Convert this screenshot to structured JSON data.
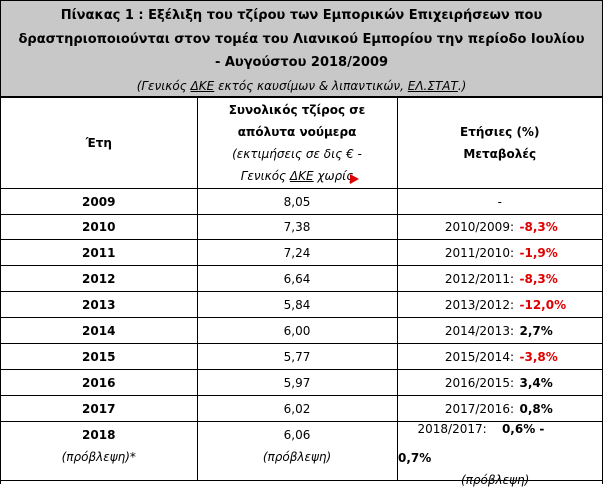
{
  "title": {
    "line1": "Πίνακας 1 : Εξέλιξη του τζίρου των Εμπορικών Επιχειρήσεων που",
    "line2": "δραστηριοποιούνται στον τομέα του Λιανικού Εμπορίου την περίοδο Ιουλίου",
    "line3": "- Αυγούστου 2018/2009",
    "subtitle_pre": "(Γενικός ",
    "subtitle_u1": "ΔΚΕ",
    "subtitle_mid": " εκτός καυσίμων & λιπαντικών, ",
    "subtitle_u2": "ΕΛ.ΣΤΑΤ",
    "subtitle_post": ".)"
  },
  "header": {
    "years": "Έτη",
    "turnover_line1": "Συνολικός τζίρος σε",
    "turnover_line2": "απόλυτα νούμερα",
    "turnover_line3": "(εκτιμήσεις σε δις € -",
    "turnover_line4_pre": "Γενικός ",
    "turnover_line4_u": "ΔΚΕ",
    "turnover_line4_post": " χωρίς",
    "change_line1": "Ετήσιες (%)",
    "change_line2": "Μεταβολές"
  },
  "rows": [
    {
      "year": "2009",
      "value": "8,05",
      "label": "-",
      "pct": "",
      "sign": "none"
    },
    {
      "year": "2010",
      "value": "7,38",
      "label": "2010/2009:",
      "pct": "-8,3%",
      "sign": "neg"
    },
    {
      "year": "2011",
      "value": "7,24",
      "label": "2011/2010:",
      "pct": "-1,9%",
      "sign": "neg"
    },
    {
      "year": "2012",
      "value": "6,64",
      "label": "2012/2011:",
      "pct": "-8,3%",
      "sign": "neg"
    },
    {
      "year": "2013",
      "value": "5,84",
      "label": "2013/2012:",
      "pct": "-12,0%",
      "sign": "neg"
    },
    {
      "year": "2014",
      "value": "6,00",
      "label": "2014/2013:",
      "pct": "2,7%",
      "sign": "pos"
    },
    {
      "year": "2015",
      "value": "5,77",
      "label": "2015/2014:",
      "pct": "-3,8%",
      "sign": "neg"
    },
    {
      "year": "2016",
      "value": "5,97",
      "label": "2016/2015:",
      "pct": "3,4%",
      "sign": "pos"
    },
    {
      "year": "2017",
      "value": "6,02",
      "label": "2017/2016:",
      "pct": "0,8%",
      "sign": "pos"
    }
  ],
  "last_row": {
    "year": "2018",
    "year_note": "(πρόβλεψη)*",
    "value": "6,06",
    "value_note": "(πρόβλεψη)",
    "label": "2018/2017:",
    "pct": "0,6% -",
    "overflow": "0,7%",
    "cut_note": "(πρόβλεψη)"
  },
  "colors": {
    "header_bg": "#c8c8c8",
    "negative": "#e00000",
    "flag": "#e00000"
  }
}
